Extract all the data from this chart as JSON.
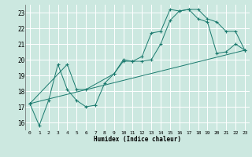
{
  "xlabel": "Humidex (Indice chaleur)",
  "bg_color": "#cce8e0",
  "grid_color": "#ffffff",
  "line_color": "#1a7a6e",
  "xlim": [
    -0.5,
    23.5
  ],
  "ylim": [
    15.5,
    23.5
  ],
  "yticks": [
    16,
    17,
    18,
    19,
    20,
    21,
    22,
    23
  ],
  "xticks": [
    0,
    1,
    2,
    3,
    4,
    5,
    6,
    7,
    8,
    9,
    10,
    11,
    12,
    13,
    14,
    15,
    16,
    17,
    18,
    19,
    20,
    21,
    22,
    23
  ],
  "series": [
    {
      "x": [
        0,
        1,
        2,
        3,
        4,
        5,
        6,
        7,
        8,
        9,
        10,
        11,
        12,
        13,
        14,
        15,
        16,
        17,
        18,
        19,
        20,
        21,
        22,
        23
      ],
      "y": [
        17.2,
        15.8,
        17.4,
        19.7,
        18.1,
        17.4,
        17.0,
        17.1,
        18.5,
        19.1,
        20.0,
        19.9,
        20.2,
        21.7,
        21.8,
        23.2,
        23.1,
        23.2,
        22.6,
        22.4,
        20.4,
        20.5,
        21.0,
        20.6
      ]
    },
    {
      "x": [
        0,
        4,
        5,
        6,
        9,
        10,
        11,
        12,
        13,
        14,
        15,
        16,
        17,
        18,
        19,
        20,
        21,
        22,
        23
      ],
      "y": [
        17.2,
        19.7,
        18.1,
        18.1,
        19.1,
        19.9,
        19.9,
        19.9,
        20.0,
        21.0,
        22.5,
        23.1,
        23.2,
        23.2,
        22.6,
        22.4,
        21.8,
        21.8,
        20.6
      ]
    },
    {
      "x": [
        0,
        23
      ],
      "y": [
        17.2,
        20.6
      ]
    }
  ]
}
